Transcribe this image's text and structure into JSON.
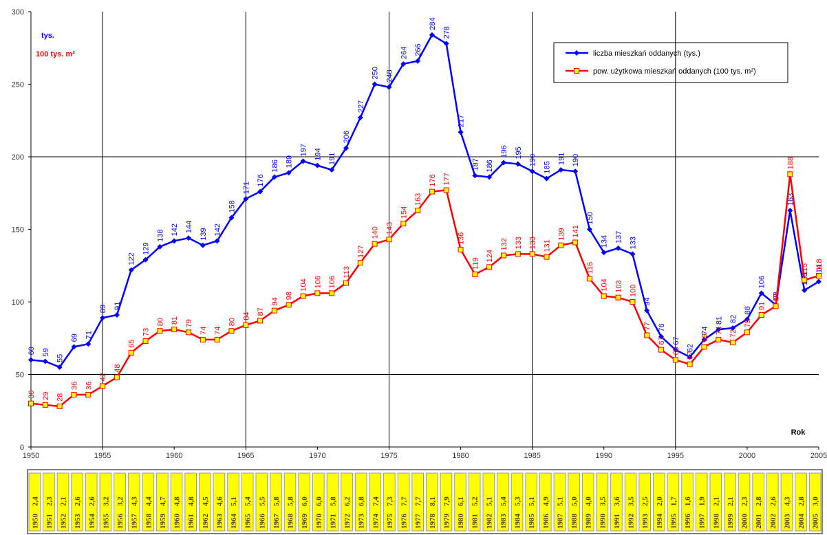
{
  "chart_data": {
    "type": "line",
    "unit_label_left": "tys.",
    "unit_label_right": "100 tys. m²",
    "x_axis_label": "Rok",
    "x": [
      1950,
      1951,
      1952,
      1953,
      1954,
      1955,
      1956,
      1957,
      1958,
      1959,
      1960,
      1961,
      1962,
      1963,
      1964,
      1965,
      1966,
      1967,
      1968,
      1969,
      1970,
      1971,
      1972,
      1973,
      1974,
      1975,
      1976,
      1977,
      1978,
      1979,
      1980,
      1981,
      1982,
      1983,
      1984,
      1985,
      1986,
      1987,
      1988,
      1989,
      1990,
      1991,
      1992,
      1993,
      1994,
      1995,
      1996,
      1997,
      1998,
      1999,
      2000,
      2001,
      2002,
      2003,
      2004,
      2005
    ],
    "series": [
      {
        "name": "liczba mieszkań oddanych (tys.)",
        "color": "#0000ff",
        "marker": "diamond",
        "values": [
          60,
          59,
          55,
          69,
          71,
          89,
          91,
          122,
          129,
          138,
          142,
          144,
          139,
          142,
          158,
          171,
          176,
          186,
          189,
          197,
          194,
          191,
          206,
          227,
          250,
          248,
          264,
          266,
          284,
          278,
          217,
          187,
          186,
          196,
          195,
          190,
          185,
          191,
          190,
          150,
          134,
          137,
          133,
          94,
          76,
          67,
          62,
          74,
          81,
          82,
          88,
          106,
          98,
          163,
          108,
          114
        ]
      },
      {
        "name": "pow. użytkowa mieszkań oddanych (100 tys. m²)",
        "color": "#ff0000",
        "marker": "square",
        "values": [
          30,
          29,
          28,
          36,
          36,
          42,
          48,
          65,
          73,
          80,
          81,
          79,
          74,
          74,
          80,
          84,
          87,
          94,
          98,
          104,
          106,
          106,
          113,
          127,
          140,
          143,
          154,
          163,
          176,
          177,
          136,
          119,
          124,
          132,
          133,
          133,
          131,
          139,
          141,
          116,
          104,
          103,
          100,
          77,
          67,
          60,
          57,
          69,
          74,
          72,
          79,
          91,
          97,
          188,
          115,
          118
        ]
      }
    ],
    "xlim": [
      1950,
      2005
    ],
    "xticks": [
      1950,
      1955,
      1960,
      1965,
      1970,
      1975,
      1980,
      1985,
      1990,
      1995,
      2000,
      2005
    ],
    "ylim": [
      0,
      300
    ],
    "yticks": [
      0,
      50,
      100,
      150,
      200,
      250,
      300
    ],
    "grid_x": [
      1955,
      1965,
      1975,
      1985,
      1995
    ],
    "grid_y": [
      50,
      200
    ],
    "legend": "top-right"
  },
  "ratio_table": {
    "years": [
      "1950",
      "1951",
      "1952",
      "1953",
      "1954",
      "1955",
      "1956",
      "1957",
      "1958",
      "1959",
      "1960",
      "1961",
      "1962",
      "1963",
      "1964",
      "1965",
      "1966",
      "1967",
      "1968",
      "1969",
      "1970",
      "1971",
      "1972",
      "1973",
      "1974",
      "1975",
      "1976",
      "1977",
      "1978",
      "1979",
      "1980",
      "1981",
      "1982",
      "1983",
      "1984",
      "1985",
      "1986",
      "1987",
      "1988",
      "1989",
      "1990",
      "1991",
      "1992",
      "1993",
      "1994",
      "1995",
      "1996",
      "1997",
      "1998",
      "1999",
      "2000",
      "2001",
      "2002",
      "2003",
      "2004",
      "2005"
    ],
    "values": [
      "2,4",
      "2,3",
      "2,1",
      "2,6",
      "2,6",
      "3,2",
      "3,2",
      "4,3",
      "4,4",
      "4,7",
      "4,8",
      "4,8",
      "4,5",
      "4,6",
      "5,1",
      "5,4",
      "5,5",
      "5,8",
      "5,8",
      "6,0",
      "6,0",
      "5,8",
      "6,2",
      "6,8",
      "7,4",
      "7,3",
      "7,7",
      "7,7",
      "8,1",
      "7,9",
      "6,1",
      "5,2",
      "5,1",
      "5,4",
      "5,3",
      "5,1",
      "4,9",
      "5,1",
      "5,0",
      "4,0",
      "3,5",
      "3,6",
      "3,5",
      "2,5",
      "2,0",
      "1,7",
      "1,6",
      "1,9",
      "2,1",
      "2,1",
      "2,3",
      "2,8",
      "2,6",
      "4,3",
      "2,8",
      "3,0"
    ]
  }
}
